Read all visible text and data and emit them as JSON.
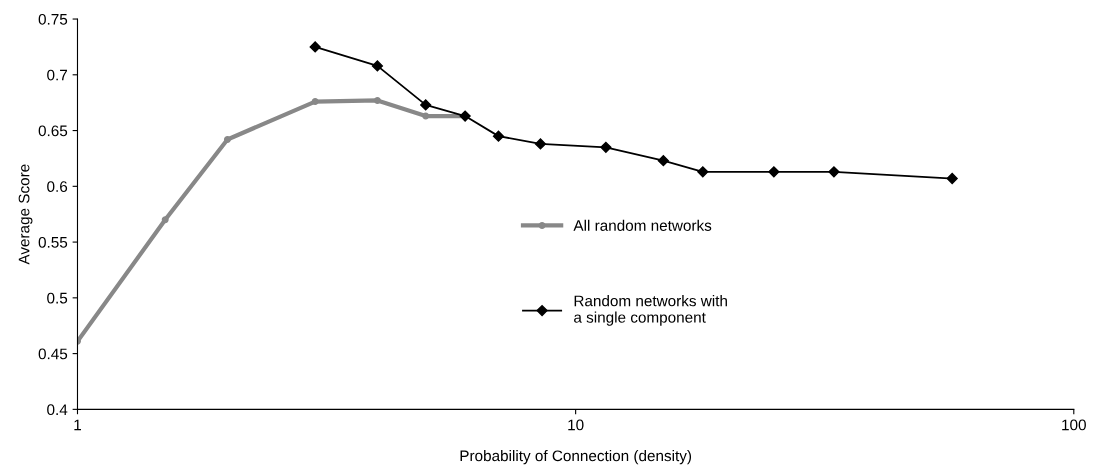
{
  "chart_data": {
    "type": "line",
    "xlabel": "Probability of Connection (density)",
    "ylabel": "Average Score",
    "log": "x",
    "xlim": [
      1,
      100
    ],
    "xticks": [
      1,
      10,
      100
    ],
    "ylim": [
      0.4,
      0.75
    ],
    "yticks": [
      0.4,
      0.45,
      0.5,
      0.55,
      0.6,
      0.65,
      0.7,
      0.75
    ],
    "grid": false,
    "legend": "center",
    "series": [
      {
        "name": "All random networks",
        "color": "#888888",
        "marker": "circle",
        "x": [
          1,
          1.5,
          2,
          3,
          4,
          5,
          6
        ],
        "values": [
          0.461,
          0.57,
          0.642,
          0.676,
          0.677,
          0.663,
          0.663
        ]
      },
      {
        "name": "Random networks with\na single component",
        "color": "#000000",
        "marker": "diamond",
        "x": [
          3,
          4,
          5,
          6,
          7,
          8.5,
          11.5,
          15,
          18,
          25,
          33,
          57
        ],
        "values": [
          0.725,
          0.708,
          0.673,
          0.663,
          0.645,
          0.638,
          0.635,
          0.623,
          0.613,
          0.613,
          0.613,
          0.607
        ]
      }
    ]
  }
}
